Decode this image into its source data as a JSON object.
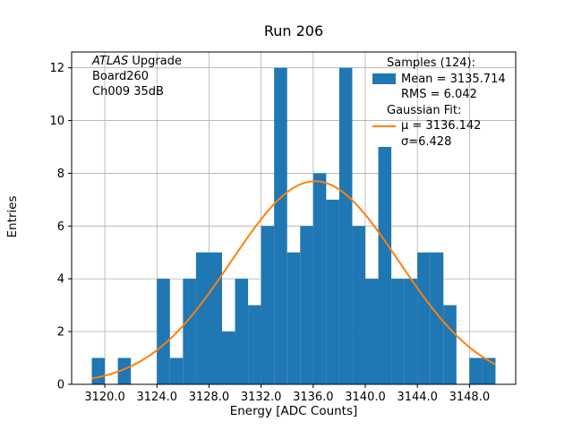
{
  "title": "Run 206",
  "xlabel": "Energy [ADC Counts]",
  "ylabel": "Entries",
  "annotation": {
    "atlas": "ATLAS",
    "line1_rest": " Upgrade",
    "line2": "Board260",
    "line3": "Ch009 35dB"
  },
  "legend": {
    "samples_header": "Samples (124):",
    "mean": "Mean = 3135.714",
    "rms": "RMS = 6.042",
    "fit_header": "Gaussian Fit:",
    "mu": "μ = 3136.142",
    "sigma": "σ=6.428"
  },
  "colors": {
    "hist": "#1f77b4",
    "fit": "#ff7f0e",
    "grid": "#b0b0b0",
    "axis": "#000000"
  },
  "chart_data": {
    "type": "bar",
    "title": "Run 206",
    "xlabel": "Energy [ADC Counts]",
    "ylabel": "Entries",
    "grid": true,
    "legend_position": "upper right (frameless)",
    "xlim": [
      3117.45,
      3151.55
    ],
    "ylim": [
      0,
      12.6
    ],
    "bin_start": 3119,
    "bin_width": 1,
    "counts": [
      1,
      0,
      1,
      0,
      0,
      4,
      1,
      4,
      5,
      5,
      2,
      4,
      3,
      6,
      12,
      5,
      6,
      8,
      7,
      12,
      6,
      4,
      9,
      4,
      4,
      5,
      5,
      3,
      0,
      1,
      1
    ],
    "xticks": {
      "values": [
        3120,
        3124,
        3128,
        3132,
        3136,
        3140,
        3144,
        3148
      ],
      "labels": [
        "3120.0",
        "3124.0",
        "3128.0",
        "3132.0",
        "3136.0",
        "3140.0",
        "3144.0",
        "3148.0"
      ]
    },
    "yticks": {
      "values": [
        0,
        2,
        4,
        6,
        8,
        10,
        12
      ],
      "labels": [
        "0",
        "2",
        "4",
        "6",
        "8",
        "10",
        "12"
      ]
    },
    "gaussian_fit": {
      "mu": 3136.142,
      "sigma": 6.428,
      "amplitude": 7.7
    },
    "stats": {
      "samples": 124,
      "mean": 3135.714,
      "rms": 6.042
    }
  }
}
